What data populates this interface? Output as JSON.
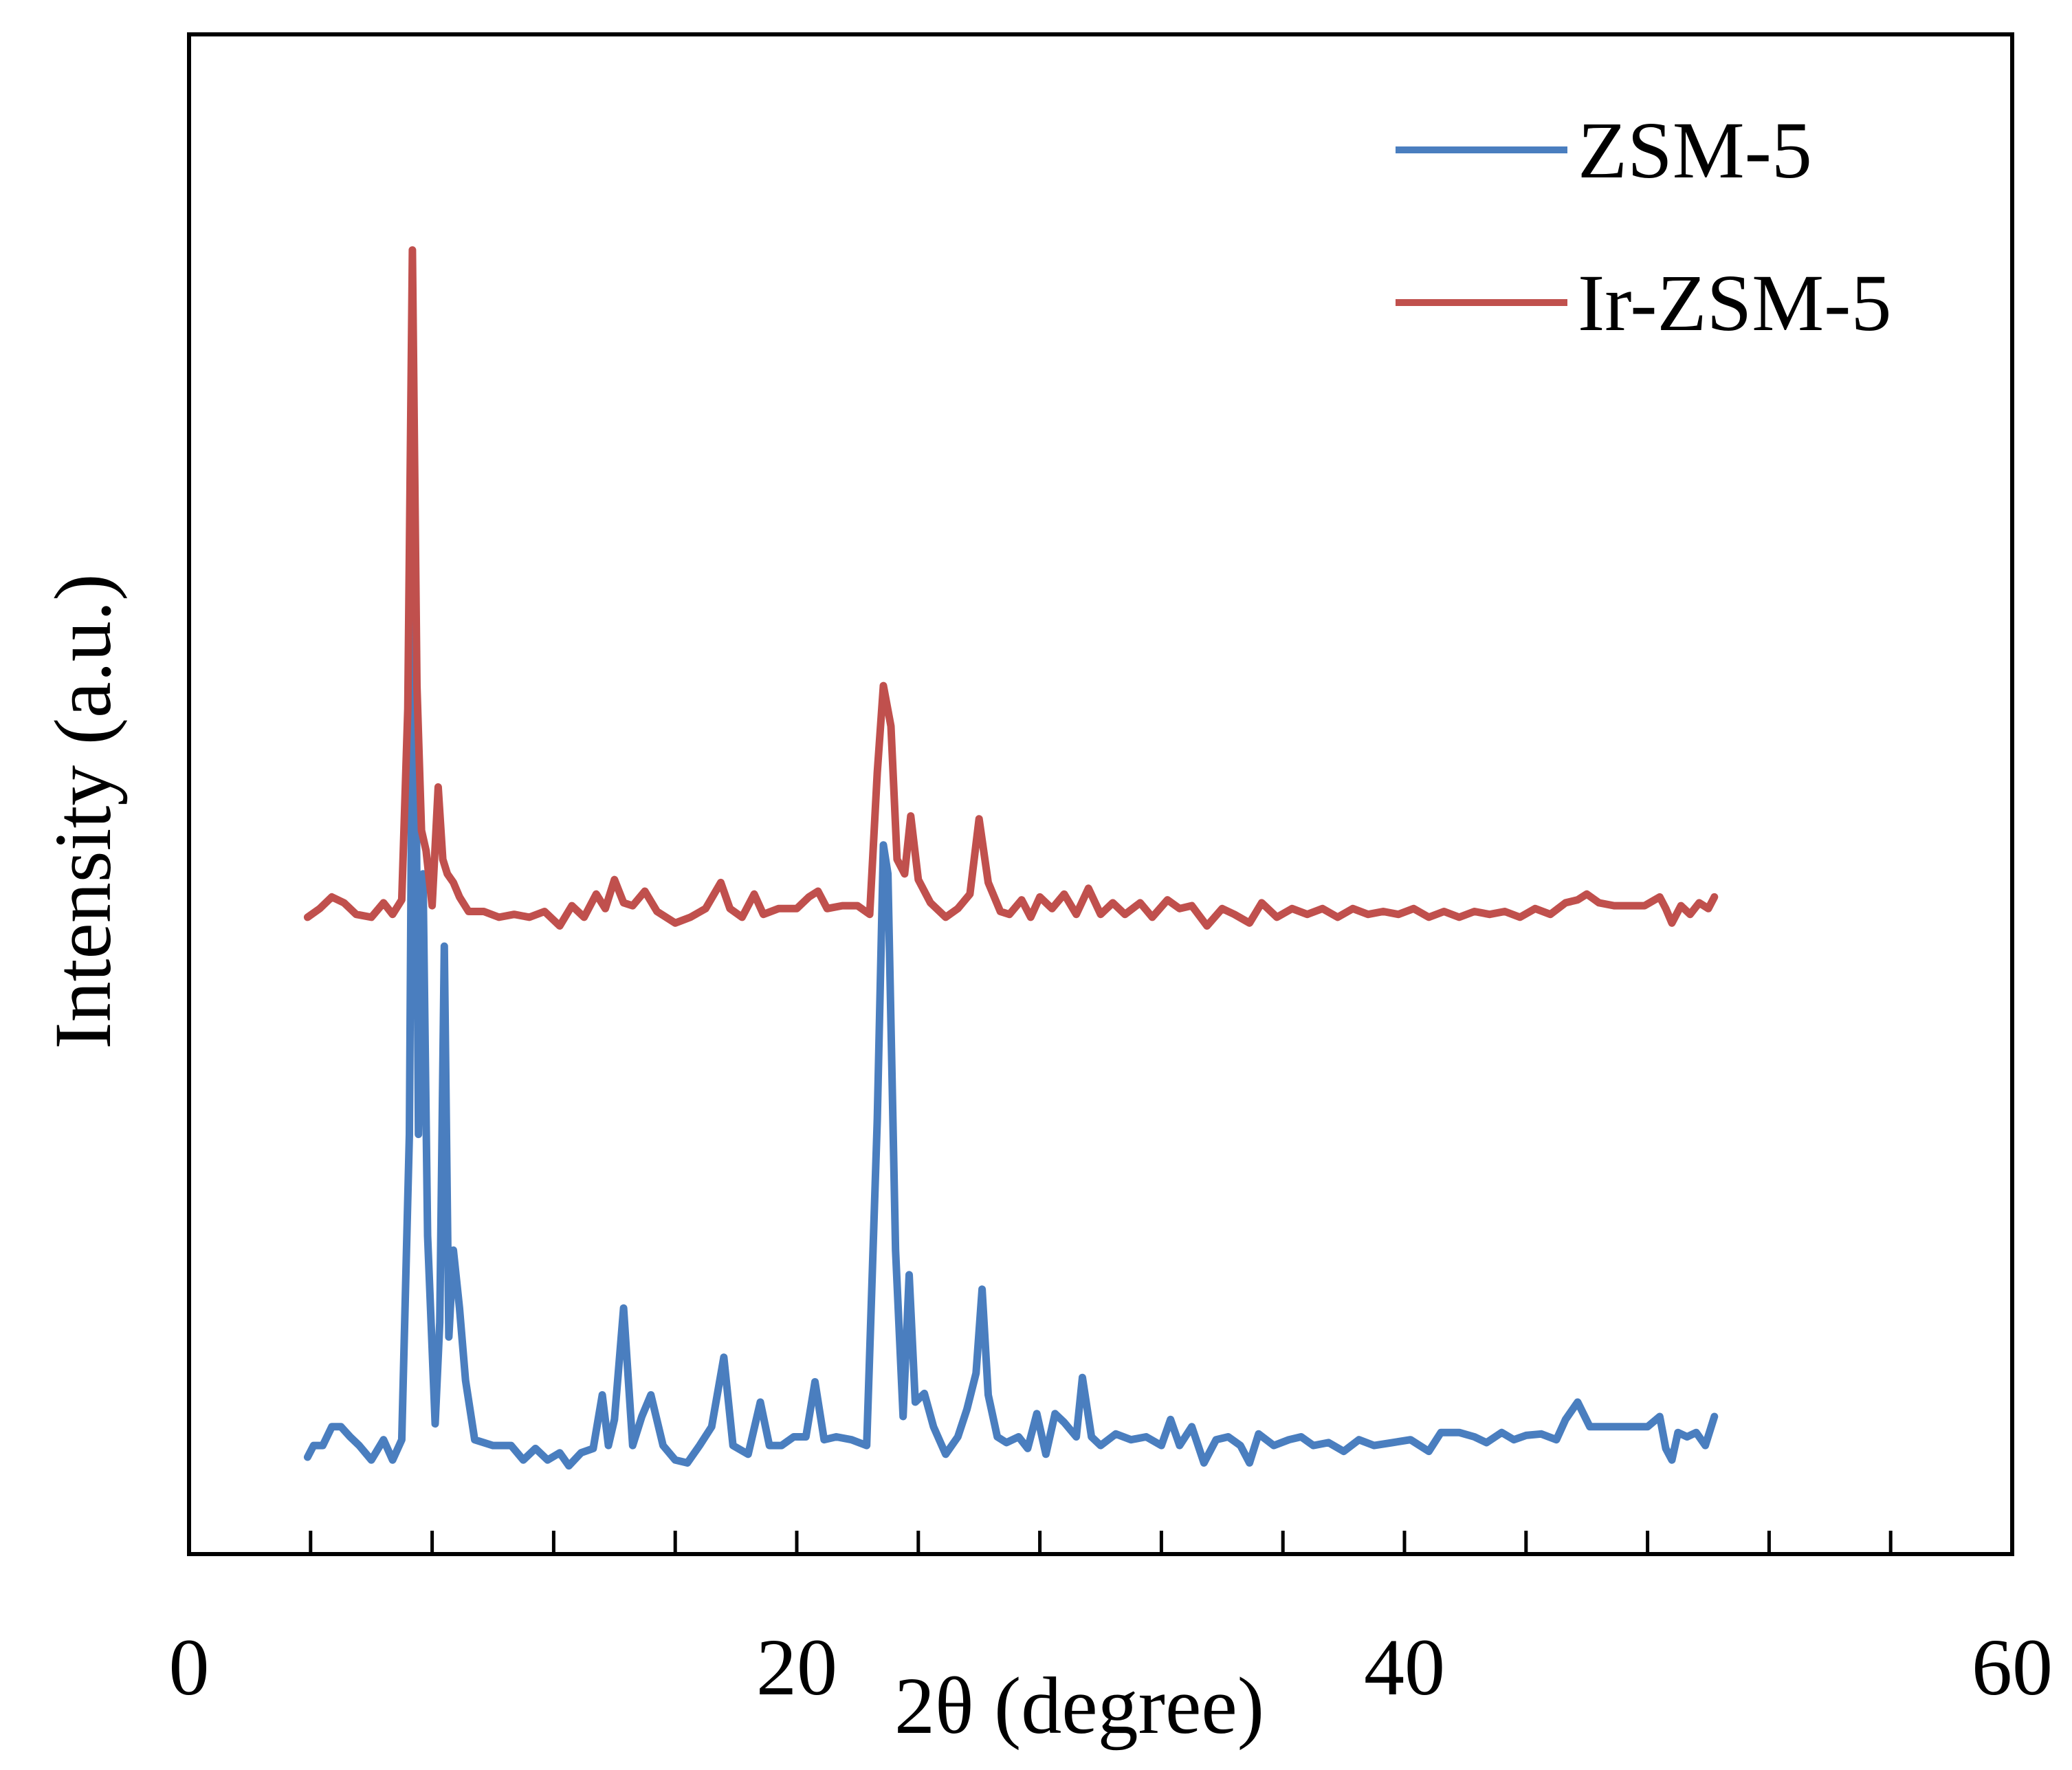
{
  "chart_data": {
    "type": "line",
    "xlabel": "2θ (degree)",
    "ylabel": "Intensity (a.u.)",
    "xlim": [
      0,
      60
    ],
    "x_ticks": [
      0,
      20,
      40,
      60
    ],
    "x_tick_labels": [
      "0",
      "20",
      "40",
      "60"
    ],
    "minor_tick_step": 4,
    "y_ticks_shown": false,
    "ylim": [
      0,
      105
    ],
    "grid": false,
    "legend_position": "top-right",
    "series": [
      {
        "name": "ZSM-5",
        "color": "#4a7ebf",
        "points": [
          [
            3.9,
            6.7
          ],
          [
            4.1,
            7.5
          ],
          [
            4.4,
            7.5
          ],
          [
            4.7,
            8.8
          ],
          [
            5.0,
            8.8
          ],
          [
            5.3,
            8.1
          ],
          [
            5.6,
            7.5
          ],
          [
            6.0,
            6.5
          ],
          [
            6.4,
            7.9
          ],
          [
            6.7,
            6.5
          ],
          [
            7.0,
            7.9
          ],
          [
            7.25,
            29
          ],
          [
            7.4,
            77
          ],
          [
            7.55,
            29
          ],
          [
            7.7,
            47
          ],
          [
            7.85,
            22
          ],
          [
            8.1,
            9
          ],
          [
            8.25,
            16
          ],
          [
            8.4,
            42
          ],
          [
            8.55,
            15
          ],
          [
            8.7,
            21
          ],
          [
            8.9,
            17
          ],
          [
            9.1,
            12
          ],
          [
            9.4,
            7.9
          ],
          [
            10.0,
            7.5
          ],
          [
            10.6,
            7.5
          ],
          [
            11.0,
            6.5
          ],
          [
            11.4,
            7.3
          ],
          [
            11.8,
            6.5
          ],
          [
            12.2,
            7.0
          ],
          [
            12.5,
            6.1
          ],
          [
            12.9,
            7.0
          ],
          [
            13.3,
            7.3
          ],
          [
            13.6,
            11
          ],
          [
            13.8,
            7.5
          ],
          [
            14.0,
            9.3
          ],
          [
            14.3,
            17
          ],
          [
            14.6,
            7.5
          ],
          [
            14.9,
            9.5
          ],
          [
            15.2,
            11
          ],
          [
            15.6,
            7.5
          ],
          [
            16.0,
            6.5
          ],
          [
            16.4,
            6.3
          ],
          [
            16.8,
            7.5
          ],
          [
            17.2,
            8.8
          ],
          [
            17.6,
            13.6
          ],
          [
            17.9,
            7.5
          ],
          [
            18.4,
            6.9
          ],
          [
            18.8,
            10.5
          ],
          [
            19.1,
            7.5
          ],
          [
            19.5,
            7.5
          ],
          [
            19.9,
            8.1
          ],
          [
            20.3,
            8.1
          ],
          [
            20.6,
            11.9
          ],
          [
            20.9,
            7.9
          ],
          [
            21.3,
            8.1
          ],
          [
            21.8,
            7.9
          ],
          [
            22.3,
            7.5
          ],
          [
            22.65,
            30
          ],
          [
            22.85,
            49
          ],
          [
            23.0,
            47
          ],
          [
            23.25,
            21
          ],
          [
            23.5,
            9.5
          ],
          [
            23.7,
            19.3
          ],
          [
            23.9,
            10.5
          ],
          [
            24.2,
            11.1
          ],
          [
            24.5,
            8.8
          ],
          [
            24.9,
            6.9
          ],
          [
            25.3,
            8.1
          ],
          [
            25.6,
            10
          ],
          [
            25.9,
            12.5
          ],
          [
            26.1,
            18.3
          ],
          [
            26.3,
            11
          ],
          [
            26.6,
            8.1
          ],
          [
            26.9,
            7.7
          ],
          [
            27.3,
            8.1
          ],
          [
            27.6,
            7.3
          ],
          [
            27.9,
            9.7
          ],
          [
            28.2,
            6.9
          ],
          [
            28.5,
            9.7
          ],
          [
            28.8,
            9.1
          ],
          [
            29.2,
            8.1
          ],
          [
            29.4,
            12.2
          ],
          [
            29.7,
            8.1
          ],
          [
            30.0,
            7.5
          ],
          [
            30.5,
            8.3
          ],
          [
            31.0,
            7.9
          ],
          [
            31.5,
            8.1
          ],
          [
            32.0,
            7.5
          ],
          [
            32.3,
            9.3
          ],
          [
            32.6,
            7.5
          ],
          [
            33.0,
            8.8
          ],
          [
            33.4,
            6.3
          ],
          [
            33.8,
            7.9
          ],
          [
            34.2,
            8.1
          ],
          [
            34.6,
            7.5
          ],
          [
            34.9,
            6.3
          ],
          [
            35.2,
            8.3
          ],
          [
            35.7,
            7.5
          ],
          [
            36.2,
            7.9
          ],
          [
            36.6,
            8.1
          ],
          [
            37.0,
            7.5
          ],
          [
            37.5,
            7.7
          ],
          [
            38.0,
            7.1
          ],
          [
            38.5,
            7.9
          ],
          [
            39.0,
            7.5
          ],
          [
            39.6,
            7.7
          ],
          [
            40.2,
            7.9
          ],
          [
            40.8,
            7.1
          ],
          [
            41.2,
            8.4
          ],
          [
            41.8,
            8.4
          ],
          [
            42.3,
            8.1
          ],
          [
            42.7,
            7.7
          ],
          [
            43.2,
            8.4
          ],
          [
            43.6,
            7.9
          ],
          [
            44.0,
            8.2
          ],
          [
            44.5,
            8.3
          ],
          [
            45.0,
            7.9
          ],
          [
            45.3,
            9.3
          ],
          [
            45.7,
            10.5
          ],
          [
            46.1,
            8.8
          ],
          [
            46.5,
            8.8
          ],
          [
            47.0,
            8.8
          ],
          [
            47.5,
            8.8
          ],
          [
            48.0,
            8.8
          ],
          [
            48.4,
            9.5
          ],
          [
            48.6,
            7.3
          ],
          [
            48.8,
            6.5
          ],
          [
            49.0,
            8.4
          ],
          [
            49.3,
            8.1
          ],
          [
            49.6,
            8.4
          ],
          [
            49.9,
            7.5
          ],
          [
            50.2,
            9.5
          ]
        ]
      },
      {
        "name": "Ir-ZSM-5",
        "color": "#c0504d",
        "points": [
          [
            3.9,
            44.0
          ],
          [
            4.3,
            44.6
          ],
          [
            4.7,
            45.4
          ],
          [
            5.1,
            45.0
          ],
          [
            5.5,
            44.2
          ],
          [
            6.0,
            44.0
          ],
          [
            6.4,
            45.0
          ],
          [
            6.7,
            44.2
          ],
          [
            7.0,
            45.2
          ],
          [
            7.2,
            58.4
          ],
          [
            7.35,
            90.1
          ],
          [
            7.5,
            60.0
          ],
          [
            7.65,
            50.0
          ],
          [
            7.8,
            48.6
          ],
          [
            8.0,
            44.8
          ],
          [
            8.2,
            53.0
          ],
          [
            8.35,
            48.0
          ],
          [
            8.5,
            47.0
          ],
          [
            8.7,
            46.4
          ],
          [
            8.9,
            45.4
          ],
          [
            9.2,
            44.4
          ],
          [
            9.7,
            44.4
          ],
          [
            10.2,
            44.0
          ],
          [
            10.7,
            44.2
          ],
          [
            11.2,
            44.0
          ],
          [
            11.7,
            44.4
          ],
          [
            12.2,
            43.4
          ],
          [
            12.6,
            44.8
          ],
          [
            13.0,
            44.0
          ],
          [
            13.4,
            45.6
          ],
          [
            13.7,
            44.6
          ],
          [
            14.0,
            46.6
          ],
          [
            14.3,
            45.0
          ],
          [
            14.6,
            44.8
          ],
          [
            15.0,
            45.8
          ],
          [
            15.4,
            44.4
          ],
          [
            16.0,
            43.6
          ],
          [
            16.5,
            44.0
          ],
          [
            17.0,
            44.6
          ],
          [
            17.5,
            46.4
          ],
          [
            17.8,
            44.6
          ],
          [
            18.2,
            44.0
          ],
          [
            18.6,
            45.6
          ],
          [
            18.9,
            44.2
          ],
          [
            19.4,
            44.6
          ],
          [
            20.0,
            44.6
          ],
          [
            20.4,
            45.4
          ],
          [
            20.7,
            45.8
          ],
          [
            21.0,
            44.6
          ],
          [
            21.5,
            44.8
          ],
          [
            22.0,
            44.8
          ],
          [
            22.4,
            44.2
          ],
          [
            22.65,
            54.0
          ],
          [
            22.85,
            60.0
          ],
          [
            23.1,
            57.2
          ],
          [
            23.3,
            48.0
          ],
          [
            23.55,
            47.0
          ],
          [
            23.75,
            51.0
          ],
          [
            24.0,
            46.6
          ],
          [
            24.4,
            45.0
          ],
          [
            24.9,
            44.0
          ],
          [
            25.3,
            44.6
          ],
          [
            25.7,
            45.6
          ],
          [
            26.0,
            50.8
          ],
          [
            26.3,
            46.4
          ],
          [
            26.7,
            44.4
          ],
          [
            27.0,
            44.2
          ],
          [
            27.4,
            45.2
          ],
          [
            27.7,
            44.0
          ],
          [
            28.0,
            45.4
          ],
          [
            28.4,
            44.6
          ],
          [
            28.8,
            45.6
          ],
          [
            29.2,
            44.2
          ],
          [
            29.6,
            46.0
          ],
          [
            30.0,
            44.2
          ],
          [
            30.4,
            45.0
          ],
          [
            30.8,
            44.2
          ],
          [
            31.3,
            45.0
          ],
          [
            31.7,
            44.0
          ],
          [
            32.2,
            45.2
          ],
          [
            32.6,
            44.6
          ],
          [
            33.0,
            44.8
          ],
          [
            33.5,
            43.4
          ],
          [
            34.0,
            44.6
          ],
          [
            34.4,
            44.2
          ],
          [
            34.9,
            43.6
          ],
          [
            35.3,
            45.0
          ],
          [
            35.8,
            44.0
          ],
          [
            36.3,
            44.6
          ],
          [
            36.8,
            44.2
          ],
          [
            37.3,
            44.6
          ],
          [
            37.8,
            44.0
          ],
          [
            38.3,
            44.6
          ],
          [
            38.8,
            44.2
          ],
          [
            39.3,
            44.4
          ],
          [
            39.8,
            44.2
          ],
          [
            40.3,
            44.6
          ],
          [
            40.8,
            44.0
          ],
          [
            41.3,
            44.4
          ],
          [
            41.8,
            44.0
          ],
          [
            42.3,
            44.4
          ],
          [
            42.8,
            44.2
          ],
          [
            43.3,
            44.4
          ],
          [
            43.8,
            44.0
          ],
          [
            44.3,
            44.6
          ],
          [
            44.8,
            44.2
          ],
          [
            45.3,
            45.0
          ],
          [
            45.7,
            45.2
          ],
          [
            46.0,
            45.6
          ],
          [
            46.4,
            45.0
          ],
          [
            46.9,
            44.8
          ],
          [
            47.4,
            44.8
          ],
          [
            47.9,
            44.8
          ],
          [
            48.4,
            45.4
          ],
          [
            48.6,
            44.6
          ],
          [
            48.8,
            43.6
          ],
          [
            49.1,
            44.8
          ],
          [
            49.4,
            44.2
          ],
          [
            49.7,
            45.0
          ],
          [
            50.0,
            44.6
          ],
          [
            50.2,
            45.4
          ]
        ]
      }
    ]
  }
}
